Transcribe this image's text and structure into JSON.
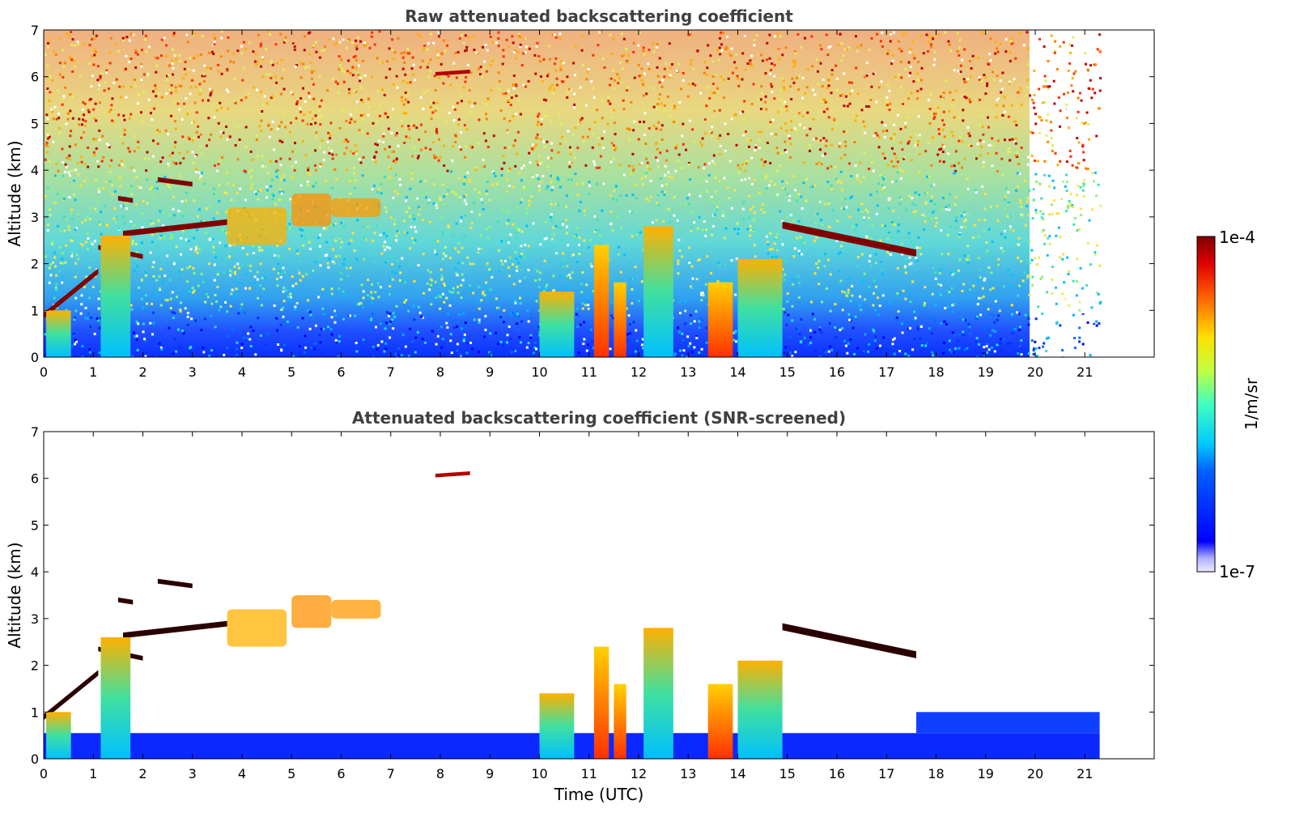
{
  "chart_data": [
    {
      "type": "heatmap",
      "title": "Raw attenuated backscattering coefficient",
      "xlabel": "",
      "ylabel": "Altitude (km)",
      "xlim": [
        0,
        22.4
      ],
      "ylim": [
        0,
        7
      ],
      "x_ticks": [
        "0",
        "1",
        "2",
        "3",
        "4",
        "5",
        "6",
        "7",
        "8",
        "9",
        "10",
        "11",
        "12",
        "13",
        "14",
        "15",
        "16",
        "17",
        "18",
        "19",
        "20",
        "21"
      ],
      "y_ticks": [
        "0",
        "1",
        "2",
        "3",
        "4",
        "5",
        "6",
        "7"
      ],
      "data_extent_hours": [
        0,
        21.3
      ],
      "features": [
        {
          "kind": "cloud-layer",
          "x": [
            0,
            1.1
          ],
          "y": [
            0.9,
            1.9
          ]
        },
        {
          "kind": "cloud-layer",
          "x": [
            1.1,
            3.7
          ],
          "y": [
            2.1,
            3.9
          ]
        },
        {
          "kind": "aerosol-layer",
          "x": [
            3.7,
            7.0
          ],
          "y": [
            2.4,
            4.0
          ]
        },
        {
          "kind": "cloud-layer",
          "x": [
            7.9,
            8.7
          ],
          "y": [
            6.0,
            6.3
          ]
        },
        {
          "kind": "precipitation",
          "x": [
            10.0,
            12.7
          ],
          "y": [
            0,
            2.8
          ]
        },
        {
          "kind": "precipitation",
          "x": [
            13.4,
            14.9
          ],
          "y": [
            0,
            2.2
          ]
        },
        {
          "kind": "cloud-layer",
          "x": [
            14.9,
            17.6
          ],
          "y": [
            2.2,
            3.2
          ]
        }
      ]
    },
    {
      "type": "heatmap",
      "title": "Attenuated backscattering coefficient (SNR-screened)",
      "xlabel": "Time (UTC)",
      "ylabel": "Altitude (km)",
      "xlim": [
        0,
        22.4
      ],
      "ylim": [
        0,
        7
      ],
      "x_ticks": [
        "0",
        "1",
        "2",
        "3",
        "4",
        "5",
        "6",
        "7",
        "8",
        "9",
        "10",
        "11",
        "12",
        "13",
        "14",
        "15",
        "16",
        "17",
        "18",
        "19",
        "20",
        "21"
      ],
      "y_ticks": [
        "0",
        "1",
        "2",
        "3",
        "4",
        "5",
        "6",
        "7"
      ],
      "data_extent_hours": [
        0,
        21.3
      ]
    }
  ],
  "colorbar": {
    "label": "1/m/sr",
    "max_label": "1e-4",
    "min_label": "1e-7",
    "colormap": "jet"
  }
}
